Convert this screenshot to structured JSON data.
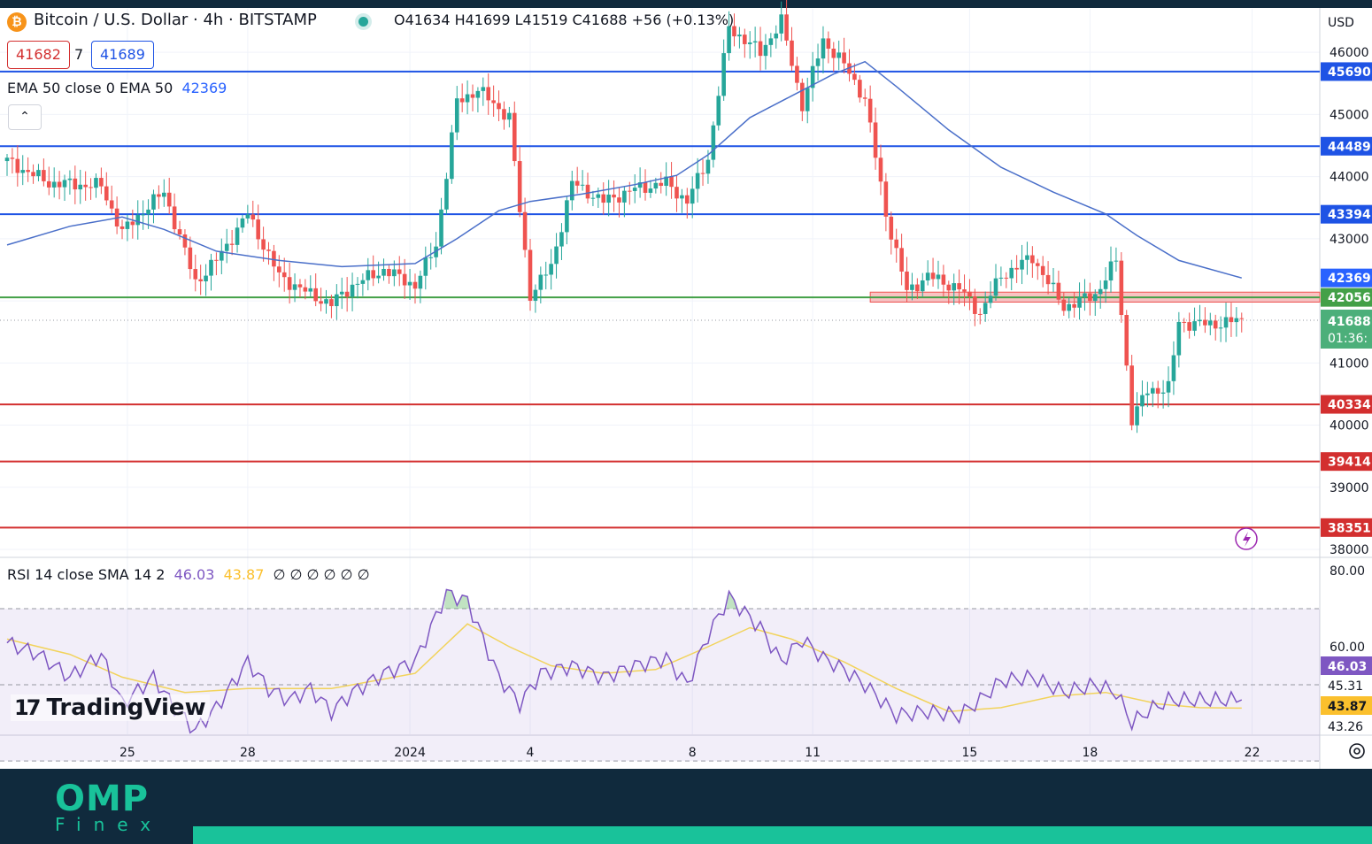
{
  "header": {
    "symbol_icon": "bitcoin-icon",
    "symbol_glyph": "₿",
    "title": "Bitcoin / U.S. Dollar · 4h · BITSTAMP",
    "ohlc": "O41634 H41699 L41519 C41688 +56 (+0.13%)",
    "bid": "41682",
    "spread": "7",
    "ask": "41689",
    "collapse_icon": "chevron-up-icon",
    "collapse_glyph": "⌃"
  },
  "ema_legend": {
    "label": "EMA 50 close 0 EMA 50",
    "value": "42369"
  },
  "rsi_legend": {
    "label": "RSI 14 close SMA 14 2",
    "rsi": "46.03",
    "sma": "43.87",
    "extras": "∅ ∅ ∅ ∅ ∅ ∅"
  },
  "branding": {
    "tv": "TradingView",
    "omp": "OMP",
    "omp_sub": "Finex",
    "settings_icon": "gear-icon",
    "alert_icon": "lightning-icon"
  },
  "colors": {
    "up": "#26a69a",
    "down": "#ef5350",
    "support": "#d32f2f",
    "resistance": "#1e53e5",
    "pivot": "#43a047",
    "ema": "#4a6fc9",
    "rsi": "#7e57c2",
    "rsi_sma": "#f2d35b"
  },
  "chart_data": [
    {
      "type": "candlestick",
      "title": "Bitcoin / U.S. Dollar · 4h · BITSTAMP",
      "ylabel": "USD",
      "ylim": [
        37900,
        46700
      ],
      "y_ticks": [
        38000,
        39000,
        40000,
        41000,
        42000,
        43000,
        44000,
        45000,
        46000
      ],
      "x_ticks": [
        {
          "label": "25",
          "index": 23
        },
        {
          "label": "28",
          "index": 46
        },
        {
          "label": "2024",
          "index": 77
        },
        {
          "label": "4",
          "index": 100
        },
        {
          "label": "8",
          "index": 131
        },
        {
          "label": "11",
          "index": 154
        },
        {
          "label": "15",
          "index": 184
        },
        {
          "label": "18",
          "index": 207
        },
        {
          "label": "22",
          "index": 238
        }
      ],
      "candle_count": 236,
      "price_path": [
        [
          0,
          44250
        ],
        [
          8,
          43900
        ],
        [
          18,
          43850
        ],
        [
          22,
          43100
        ],
        [
          26,
          43450
        ],
        [
          30,
          43750
        ],
        [
          36,
          42300
        ],
        [
          40,
          42650
        ],
        [
          46,
          43400
        ],
        [
          52,
          42400
        ],
        [
          58,
          42100
        ],
        [
          62,
          41950
        ],
        [
          66,
          42250
        ],
        [
          72,
          42500
        ],
        [
          78,
          42250
        ],
        [
          82,
          42900
        ],
        [
          86,
          45200
        ],
        [
          90,
          45400
        ],
        [
          96,
          44950
        ],
        [
          98,
          43450
        ],
        [
          100,
          42100
        ],
        [
          104,
          42550
        ],
        [
          108,
          43900
        ],
        [
          114,
          43600
        ],
        [
          120,
          43800
        ],
        [
          126,
          43900
        ],
        [
          130,
          43600
        ],
        [
          134,
          44300
        ],
        [
          138,
          46400
        ],
        [
          144,
          46000
        ],
        [
          148,
          46500
        ],
        [
          152,
          45150
        ],
        [
          156,
          46200
        ],
        [
          160,
          45800
        ],
        [
          164,
          45250
        ],
        [
          168,
          43400
        ],
        [
          172,
          42150
        ],
        [
          176,
          42400
        ],
        [
          182,
          42200
        ],
        [
          186,
          41800
        ],
        [
          190,
          42400
        ],
        [
          196,
          42700
        ],
        [
          202,
          41900
        ],
        [
          208,
          42100
        ],
        [
          212,
          42650
        ],
        [
          215,
          40100
        ],
        [
          218,
          40550
        ],
        [
          222,
          40600
        ],
        [
          224,
          41650
        ],
        [
          230,
          41620
        ],
        [
          236,
          41688
        ]
      ],
      "ema50_path": [
        [
          0,
          42900
        ],
        [
          12,
          43200
        ],
        [
          22,
          43350
        ],
        [
          30,
          43150
        ],
        [
          40,
          42800
        ],
        [
          52,
          42650
        ],
        [
          64,
          42550
        ],
        [
          78,
          42600
        ],
        [
          86,
          43000
        ],
        [
          94,
          43450
        ],
        [
          100,
          43600
        ],
        [
          110,
          43720
        ],
        [
          120,
          43870
        ],
        [
          128,
          44020
        ],
        [
          134,
          44350
        ],
        [
          142,
          44950
        ],
        [
          150,
          45300
        ],
        [
          158,
          45650
        ],
        [
          164,
          45850
        ],
        [
          170,
          45450
        ],
        [
          180,
          44750
        ],
        [
          190,
          44150
        ],
        [
          200,
          43750
        ],
        [
          210,
          43400
        ],
        [
          216,
          43050
        ],
        [
          224,
          42650
        ],
        [
          236,
          42369
        ]
      ],
      "levels": [
        {
          "value": 45690,
          "kind": "resistance",
          "label": "45690"
        },
        {
          "value": 44489,
          "kind": "resistance",
          "label": "44489"
        },
        {
          "value": 43394,
          "kind": "resistance",
          "label": "43394"
        },
        {
          "value": 42056,
          "kind": "pivot",
          "label": "42056"
        },
        {
          "value": 40334,
          "kind": "support",
          "label": "40334"
        },
        {
          "value": 39414,
          "kind": "support",
          "label": "39414"
        },
        {
          "value": 38351,
          "kind": "support",
          "label": "38351"
        }
      ],
      "zone": {
        "from_index": 165,
        "from": 41980,
        "to": 42140
      },
      "ema_value": 42369,
      "last_price": 41688,
      "countdown": "01:36:"
    },
    {
      "type": "line",
      "title": "RSI 14 close SMA 14 2",
      "ylim": [
        37,
        83
      ],
      "y_ticks": [
        "80.00",
        "60.00"
      ],
      "bands": {
        "upper": 70,
        "middle": 50,
        "lower": 30
      },
      "rsi_path": [
        [
          0,
          61
        ],
        [
          6,
          58
        ],
        [
          12,
          52
        ],
        [
          18,
          58
        ],
        [
          22,
          45
        ],
        [
          28,
          52
        ],
        [
          32,
          44
        ],
        [
          36,
          38
        ],
        [
          40,
          44
        ],
        [
          46,
          56
        ],
        [
          50,
          49
        ],
        [
          54,
          46
        ],
        [
          58,
          49
        ],
        [
          62,
          43
        ],
        [
          66,
          48
        ],
        [
          72,
          53
        ],
        [
          78,
          56
        ],
        [
          84,
          74
        ],
        [
          88,
          72
        ],
        [
          94,
          52
        ],
        [
          98,
          45
        ],
        [
          102,
          53
        ],
        [
          108,
          55
        ],
        [
          114,
          52
        ],
        [
          120,
          55
        ],
        [
          126,
          57
        ],
        [
          130,
          50
        ],
        [
          134,
          63
        ],
        [
          138,
          73
        ],
        [
          144,
          65
        ],
        [
          148,
          56
        ],
        [
          152,
          62
        ],
        [
          156,
          57
        ],
        [
          160,
          54
        ],
        [
          164,
          50
        ],
        [
          170,
          42
        ],
        [
          176,
          43
        ],
        [
          182,
          42
        ],
        [
          186,
          46
        ],
        [
          190,
          51
        ],
        [
          196,
          52
        ],
        [
          202,
          48
        ],
        [
          208,
          50
        ],
        [
          212,
          48
        ],
        [
          215,
          40
        ],
        [
          218,
          43
        ],
        [
          222,
          46
        ],
        [
          228,
          46
        ],
        [
          236,
          46.03
        ]
      ],
      "sma_path": [
        [
          0,
          62
        ],
        [
          12,
          58
        ],
        [
          22,
          52
        ],
        [
          34,
          48
        ],
        [
          46,
          49
        ],
        [
          62,
          49
        ],
        [
          78,
          53
        ],
        [
          88,
          66
        ],
        [
          96,
          60
        ],
        [
          104,
          55
        ],
        [
          114,
          53
        ],
        [
          124,
          54
        ],
        [
          134,
          60
        ],
        [
          142,
          65
        ],
        [
          150,
          62
        ],
        [
          160,
          56
        ],
        [
          170,
          49
        ],
        [
          180,
          43
        ],
        [
          190,
          44
        ],
        [
          200,
          47
        ],
        [
          210,
          48
        ],
        [
          220,
          45
        ],
        [
          228,
          44
        ],
        [
          236,
          43.87
        ]
      ],
      "labels": [
        {
          "value": "46.03",
          "kind": "rsi"
        },
        {
          "value": "45.31",
          "kind": "plain"
        },
        {
          "value": "43.87",
          "kind": "sma"
        },
        {
          "value": "43.26",
          "kind": "plain"
        }
      ]
    }
  ]
}
